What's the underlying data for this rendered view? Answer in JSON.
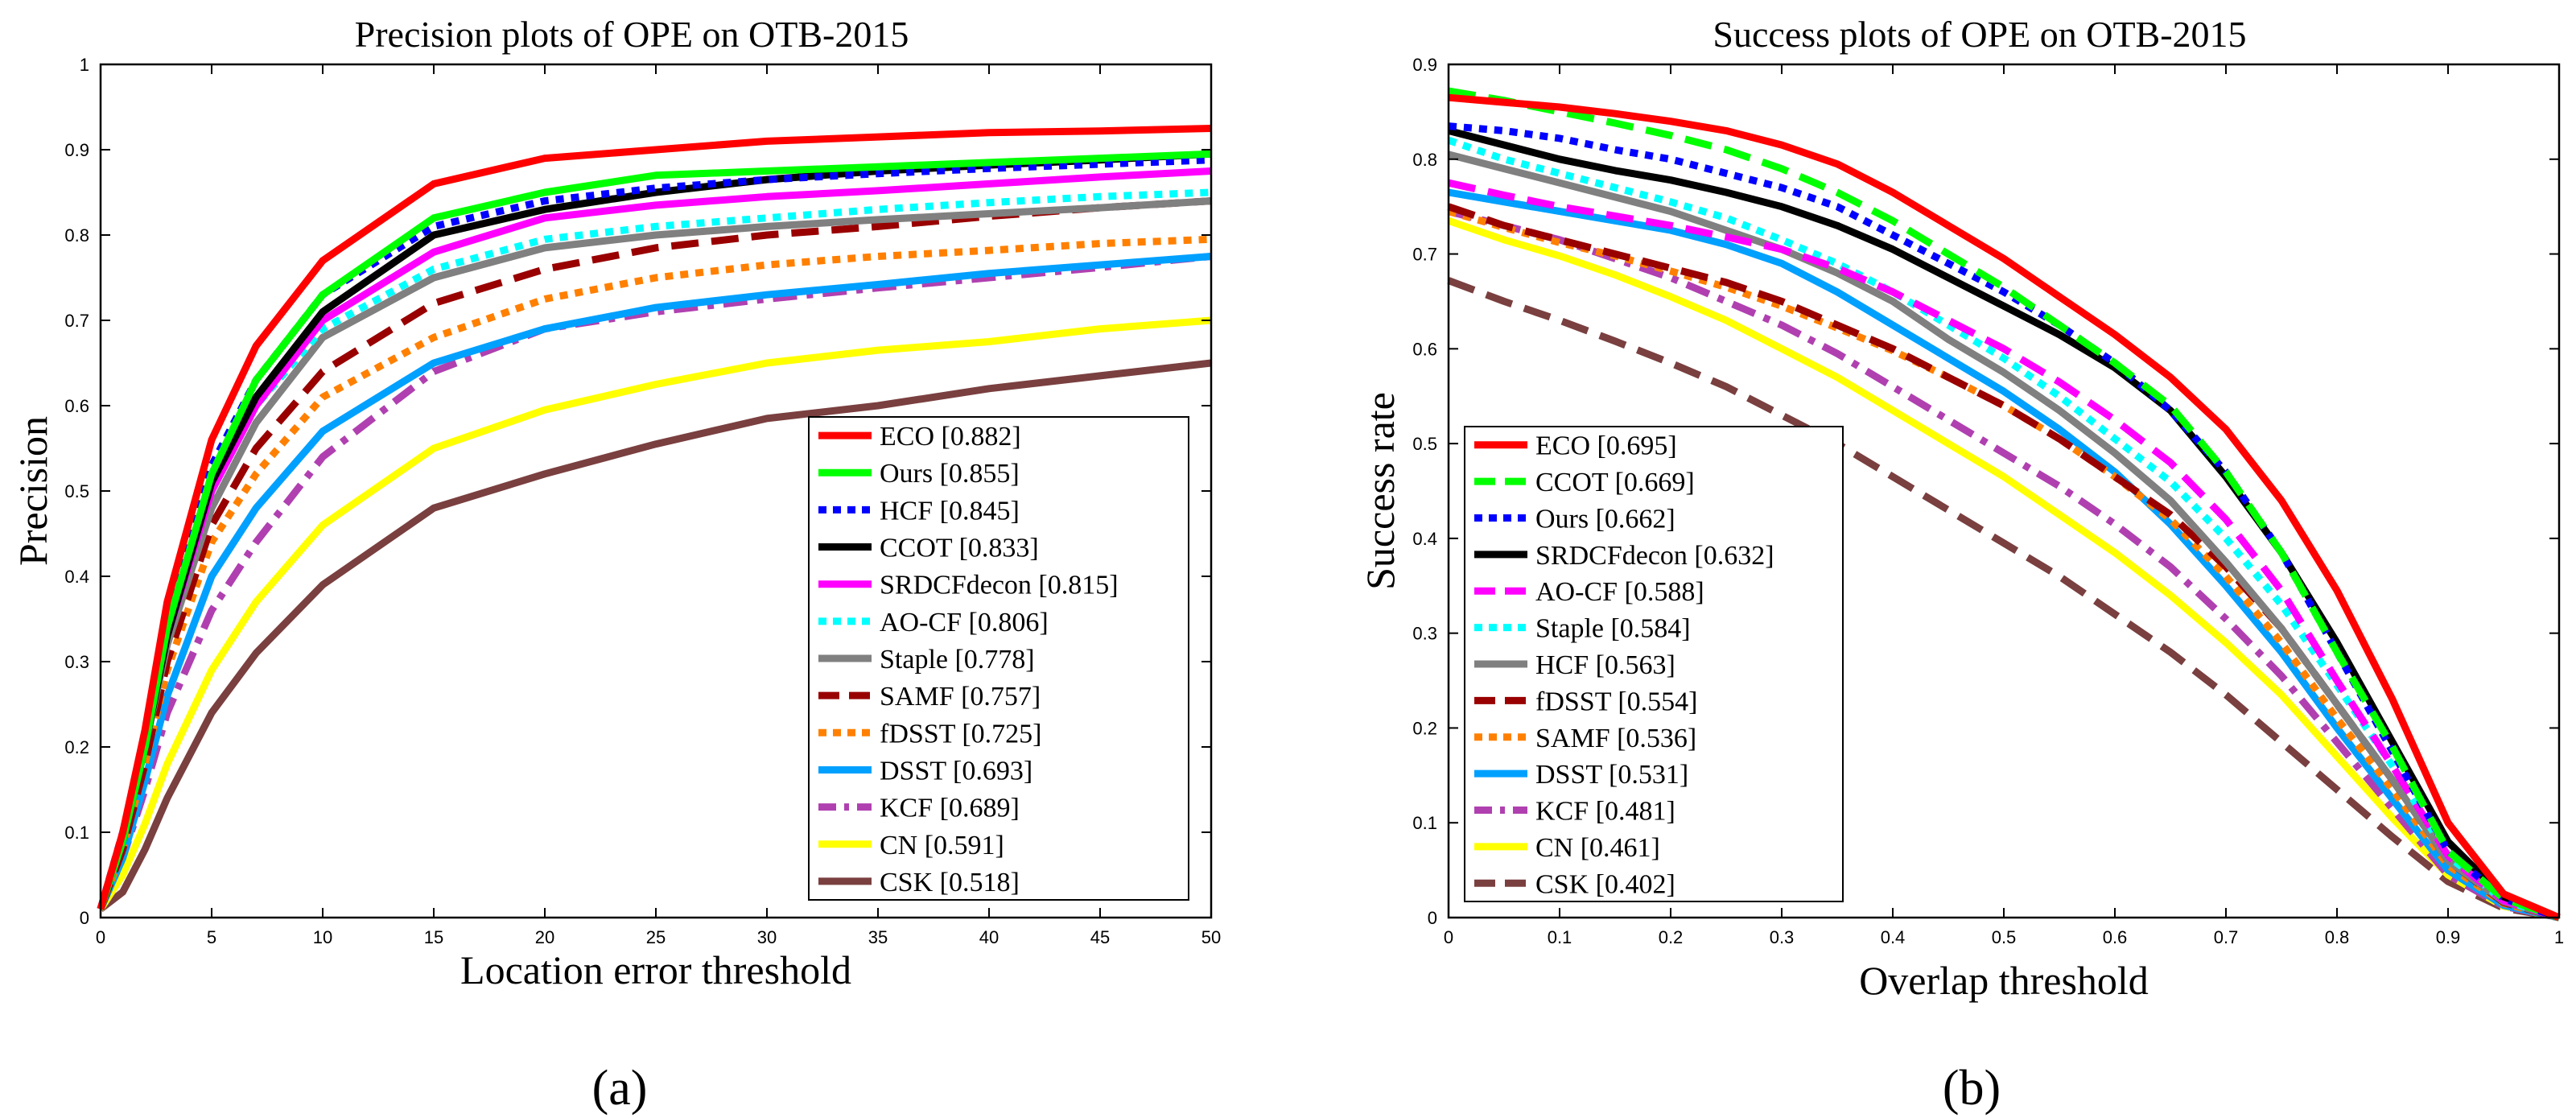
{
  "chart_data": [
    {
      "type": "line",
      "id": "a",
      "title": "Precision plots of OPE on OTB-2015",
      "xlabel": "Location error threshold",
      "ylabel": "Precision",
      "xlim": [
        0,
        50
      ],
      "ylim": [
        0,
        1
      ],
      "xticks": [
        0,
        5,
        10,
        15,
        20,
        25,
        30,
        35,
        40,
        45,
        50
      ],
      "yticks": [
        0,
        0.1,
        0.2,
        0.3,
        0.4,
        0.5,
        0.6,
        0.7,
        0.8,
        0.9,
        1
      ],
      "ytick_labels": [
        "0",
        "0.1",
        "0.2",
        "0.3",
        "0.4",
        "0.5",
        "0.6",
        "0.7",
        "0.8",
        "0.9",
        "1"
      ],
      "panel_label": "(a)",
      "legend_position": "bottom-right",
      "x": [
        0,
        1,
        2,
        3,
        5,
        7,
        10,
        15,
        20,
        25,
        30,
        35,
        40,
        45,
        50
      ],
      "series": [
        {
          "name": "ECO [0.882]",
          "color": "#ff0000",
          "dash": "solid",
          "values": [
            0.01,
            0.1,
            0.22,
            0.37,
            0.56,
            0.67,
            0.77,
            0.86,
            0.89,
            0.9,
            0.91,
            0.915,
            0.92,
            0.922,
            0.925
          ]
        },
        {
          "name": "Ours [0.855]",
          "color": "#00ff00",
          "dash": "solid",
          "values": [
            0.01,
            0.09,
            0.2,
            0.34,
            0.52,
            0.63,
            0.73,
            0.82,
            0.85,
            0.87,
            0.875,
            0.88,
            0.885,
            0.89,
            0.895
          ]
        },
        {
          "name": "HCF [0.845]",
          "color": "#0000ff",
          "dash": "dot",
          "values": [
            0.01,
            0.1,
            0.21,
            0.35,
            0.53,
            0.63,
            0.73,
            0.81,
            0.84,
            0.855,
            0.865,
            0.872,
            0.878,
            0.883,
            0.888
          ]
        },
        {
          "name": "CCOT [0.833]",
          "color": "#000000",
          "dash": "solid",
          "values": [
            0.01,
            0.09,
            0.2,
            0.33,
            0.51,
            0.61,
            0.71,
            0.8,
            0.83,
            0.85,
            0.865,
            0.875,
            0.882,
            0.888,
            0.895
          ]
        },
        {
          "name": "SRDCFdecon [0.815]",
          "color": "#ff00ff",
          "dash": "solid",
          "values": [
            0.01,
            0.09,
            0.2,
            0.33,
            0.5,
            0.6,
            0.7,
            0.78,
            0.82,
            0.835,
            0.845,
            0.852,
            0.86,
            0.868,
            0.875
          ]
        },
        {
          "name": "AO-CF [0.806]",
          "color": "#00ffff",
          "dash": "dot",
          "values": [
            0.01,
            0.09,
            0.2,
            0.33,
            0.5,
            0.6,
            0.69,
            0.76,
            0.795,
            0.81,
            0.82,
            0.83,
            0.838,
            0.845,
            0.85
          ]
        },
        {
          "name": "Staple [0.778]",
          "color": "#808080",
          "dash": "solid",
          "values": [
            0.01,
            0.09,
            0.2,
            0.32,
            0.48,
            0.58,
            0.68,
            0.75,
            0.785,
            0.8,
            0.81,
            0.818,
            0.825,
            0.832,
            0.84
          ]
        },
        {
          "name": "SAMF [0.757]",
          "color": "#990000",
          "dash": "dash",
          "values": [
            0.01,
            0.08,
            0.18,
            0.3,
            0.46,
            0.55,
            0.64,
            0.72,
            0.76,
            0.785,
            0.8,
            0.81,
            0.822,
            0.832,
            0.84
          ]
        },
        {
          "name": "fDSST [0.725]",
          "color": "#ff8000",
          "dash": "dot",
          "values": [
            0.01,
            0.08,
            0.18,
            0.29,
            0.44,
            0.52,
            0.61,
            0.68,
            0.725,
            0.75,
            0.765,
            0.775,
            0.782,
            0.79,
            0.795
          ]
        },
        {
          "name": "DSST [0.693]",
          "color": "#00a0ff",
          "dash": "solid",
          "values": [
            0.01,
            0.07,
            0.16,
            0.26,
            0.4,
            0.48,
            0.57,
            0.65,
            0.69,
            0.715,
            0.73,
            0.742,
            0.755,
            0.765,
            0.775
          ]
        },
        {
          "name": "KCF [0.689]",
          "color": "#b040b0",
          "dash": "dashdot",
          "values": [
            0.01,
            0.07,
            0.15,
            0.24,
            0.36,
            0.44,
            0.54,
            0.64,
            0.69,
            0.71,
            0.725,
            0.738,
            0.75,
            0.762,
            0.775
          ]
        },
        {
          "name": "CN [0.591]",
          "color": "#ffff00",
          "dash": "solid",
          "values": [
            0.01,
            0.05,
            0.11,
            0.18,
            0.29,
            0.37,
            0.46,
            0.55,
            0.595,
            0.625,
            0.65,
            0.665,
            0.675,
            0.69,
            0.7
          ]
        },
        {
          "name": "CSK [0.518]",
          "color": "#7a3f3f",
          "dash": "solid",
          "values": [
            0.01,
            0.03,
            0.08,
            0.14,
            0.24,
            0.31,
            0.39,
            0.48,
            0.52,
            0.555,
            0.585,
            0.6,
            0.62,
            0.635,
            0.65
          ]
        }
      ]
    },
    {
      "type": "line",
      "id": "b",
      "title": "Success plots of OPE on OTB-2015",
      "xlabel": "Overlap threshold",
      "ylabel": "Success rate",
      "xlim": [
        0,
        1
      ],
      "ylim": [
        0,
        0.9
      ],
      "xticks": [
        0,
        0.1,
        0.2,
        0.3,
        0.4,
        0.5,
        0.6,
        0.7,
        0.8,
        0.9,
        1
      ],
      "xtick_labels": [
        "0",
        "0.1",
        "0.2",
        "0.3",
        "0.4",
        "0.5",
        "0.6",
        "0.7",
        "0.8",
        "0.9",
        "1"
      ],
      "yticks": [
        0,
        0.1,
        0.2,
        0.3,
        0.4,
        0.5,
        0.6,
        0.7,
        0.8,
        0.9
      ],
      "ytick_labels": [
        "0",
        "0.1",
        "0.2",
        "0.3",
        "0.4",
        "0.5",
        "0.6",
        "0.7",
        "0.8",
        "0.9"
      ],
      "panel_label": "(b)",
      "legend_position": "bottom-left",
      "x": [
        0,
        0.05,
        0.1,
        0.15,
        0.2,
        0.25,
        0.3,
        0.35,
        0.4,
        0.45,
        0.5,
        0.55,
        0.6,
        0.65,
        0.7,
        0.75,
        0.8,
        0.85,
        0.9,
        0.95,
        1.0
      ],
      "series": [
        {
          "name": "ECO [0.695]",
          "color": "#ff0000",
          "dash": "solid",
          "values": [
            0.865,
            0.86,
            0.855,
            0.848,
            0.84,
            0.83,
            0.815,
            0.795,
            0.765,
            0.73,
            0.695,
            0.655,
            0.615,
            0.57,
            0.515,
            0.44,
            0.345,
            0.23,
            0.1,
            0.025,
            0.0
          ]
        },
        {
          "name": "CCOT [0.669]",
          "color": "#00ff00",
          "dash": "dash",
          "values": [
            0.872,
            0.862,
            0.85,
            0.838,
            0.825,
            0.81,
            0.79,
            0.765,
            0.735,
            0.7,
            0.665,
            0.625,
            0.585,
            0.54,
            0.47,
            0.385,
            0.28,
            0.18,
            0.07,
            0.02,
            0.0
          ]
        },
        {
          "name": "Ours [0.662]",
          "color": "#0000ff",
          "dash": "dot",
          "values": [
            0.835,
            0.83,
            0.822,
            0.81,
            0.8,
            0.785,
            0.77,
            0.75,
            0.72,
            0.69,
            0.66,
            0.625,
            0.585,
            0.535,
            0.47,
            0.385,
            0.28,
            0.175,
            0.07,
            0.02,
            0.0
          ]
        },
        {
          "name": "SRDCFdecon [0.632]",
          "color": "#000000",
          "dash": "solid",
          "values": [
            0.83,
            0.815,
            0.8,
            0.788,
            0.778,
            0.765,
            0.75,
            0.73,
            0.705,
            0.675,
            0.645,
            0.615,
            0.58,
            0.535,
            0.465,
            0.385,
            0.29,
            0.185,
            0.08,
            0.022,
            0.0
          ]
        },
        {
          "name": "AO-CF [0.588]",
          "color": "#ff00ff",
          "dash": "dash",
          "values": [
            0.775,
            0.762,
            0.75,
            0.74,
            0.73,
            0.718,
            0.705,
            0.685,
            0.66,
            0.63,
            0.6,
            0.565,
            0.525,
            0.48,
            0.42,
            0.345,
            0.25,
            0.16,
            0.065,
            0.018,
            0.0
          ]
        },
        {
          "name": "Staple [0.584]",
          "color": "#00ffff",
          "dash": "dot",
          "values": [
            0.82,
            0.8,
            0.785,
            0.77,
            0.755,
            0.738,
            0.715,
            0.69,
            0.66,
            0.625,
            0.59,
            0.55,
            0.505,
            0.46,
            0.4,
            0.33,
            0.245,
            0.16,
            0.065,
            0.018,
            0.0
          ]
        },
        {
          "name": "HCF [0.563]",
          "color": "#808080",
          "dash": "solid",
          "values": [
            0.805,
            0.79,
            0.775,
            0.76,
            0.745,
            0.725,
            0.705,
            0.68,
            0.65,
            0.61,
            0.575,
            0.535,
            0.49,
            0.44,
            0.375,
            0.305,
            0.225,
            0.145,
            0.06,
            0.017,
            0.0
          ]
        },
        {
          "name": "fDSST [0.554]",
          "color": "#990000",
          "dash": "dash",
          "values": [
            0.75,
            0.73,
            0.715,
            0.7,
            0.685,
            0.67,
            0.65,
            0.625,
            0.6,
            0.57,
            0.54,
            0.505,
            0.465,
            0.425,
            0.37,
            0.305,
            0.225,
            0.145,
            0.06,
            0.016,
            0.0
          ]
        },
        {
          "name": "SAMF [0.536]",
          "color": "#ff8000",
          "dash": "dot",
          "values": [
            0.745,
            0.728,
            0.712,
            0.698,
            0.682,
            0.665,
            0.645,
            0.622,
            0.598,
            0.57,
            0.54,
            0.505,
            0.465,
            0.42,
            0.36,
            0.29,
            0.21,
            0.135,
            0.055,
            0.015,
            0.0
          ]
        },
        {
          "name": "DSST [0.531]",
          "color": "#00a0ff",
          "dash": "solid",
          "values": [
            0.765,
            0.755,
            0.745,
            0.735,
            0.725,
            0.71,
            0.69,
            0.66,
            0.625,
            0.59,
            0.555,
            0.515,
            0.47,
            0.415,
            0.35,
            0.28,
            0.2,
            0.125,
            0.05,
            0.013,
            0.0
          ]
        },
        {
          "name": "KCF [0.481]",
          "color": "#b040b0",
          "dash": "dashdot",
          "values": [
            0.745,
            0.73,
            0.715,
            0.695,
            0.675,
            0.65,
            0.625,
            0.595,
            0.56,
            0.525,
            0.49,
            0.455,
            0.415,
            0.37,
            0.315,
            0.255,
            0.185,
            0.115,
            0.045,
            0.012,
            0.0
          ]
        },
        {
          "name": "CN [0.461]",
          "color": "#ffff00",
          "dash": "solid",
          "values": [
            0.735,
            0.715,
            0.698,
            0.678,
            0.655,
            0.63,
            0.6,
            0.57,
            0.535,
            0.5,
            0.465,
            0.425,
            0.385,
            0.34,
            0.29,
            0.235,
            0.17,
            0.105,
            0.045,
            0.012,
            0.0
          ]
        },
        {
          "name": "CSK [0.402]",
          "color": "#7a3f3f",
          "dash": "dash",
          "values": [
            0.672,
            0.65,
            0.63,
            0.608,
            0.585,
            0.56,
            0.53,
            0.5,
            0.465,
            0.43,
            0.395,
            0.36,
            0.32,
            0.28,
            0.235,
            0.185,
            0.135,
            0.085,
            0.038,
            0.01,
            0.0
          ]
        }
      ]
    }
  ]
}
